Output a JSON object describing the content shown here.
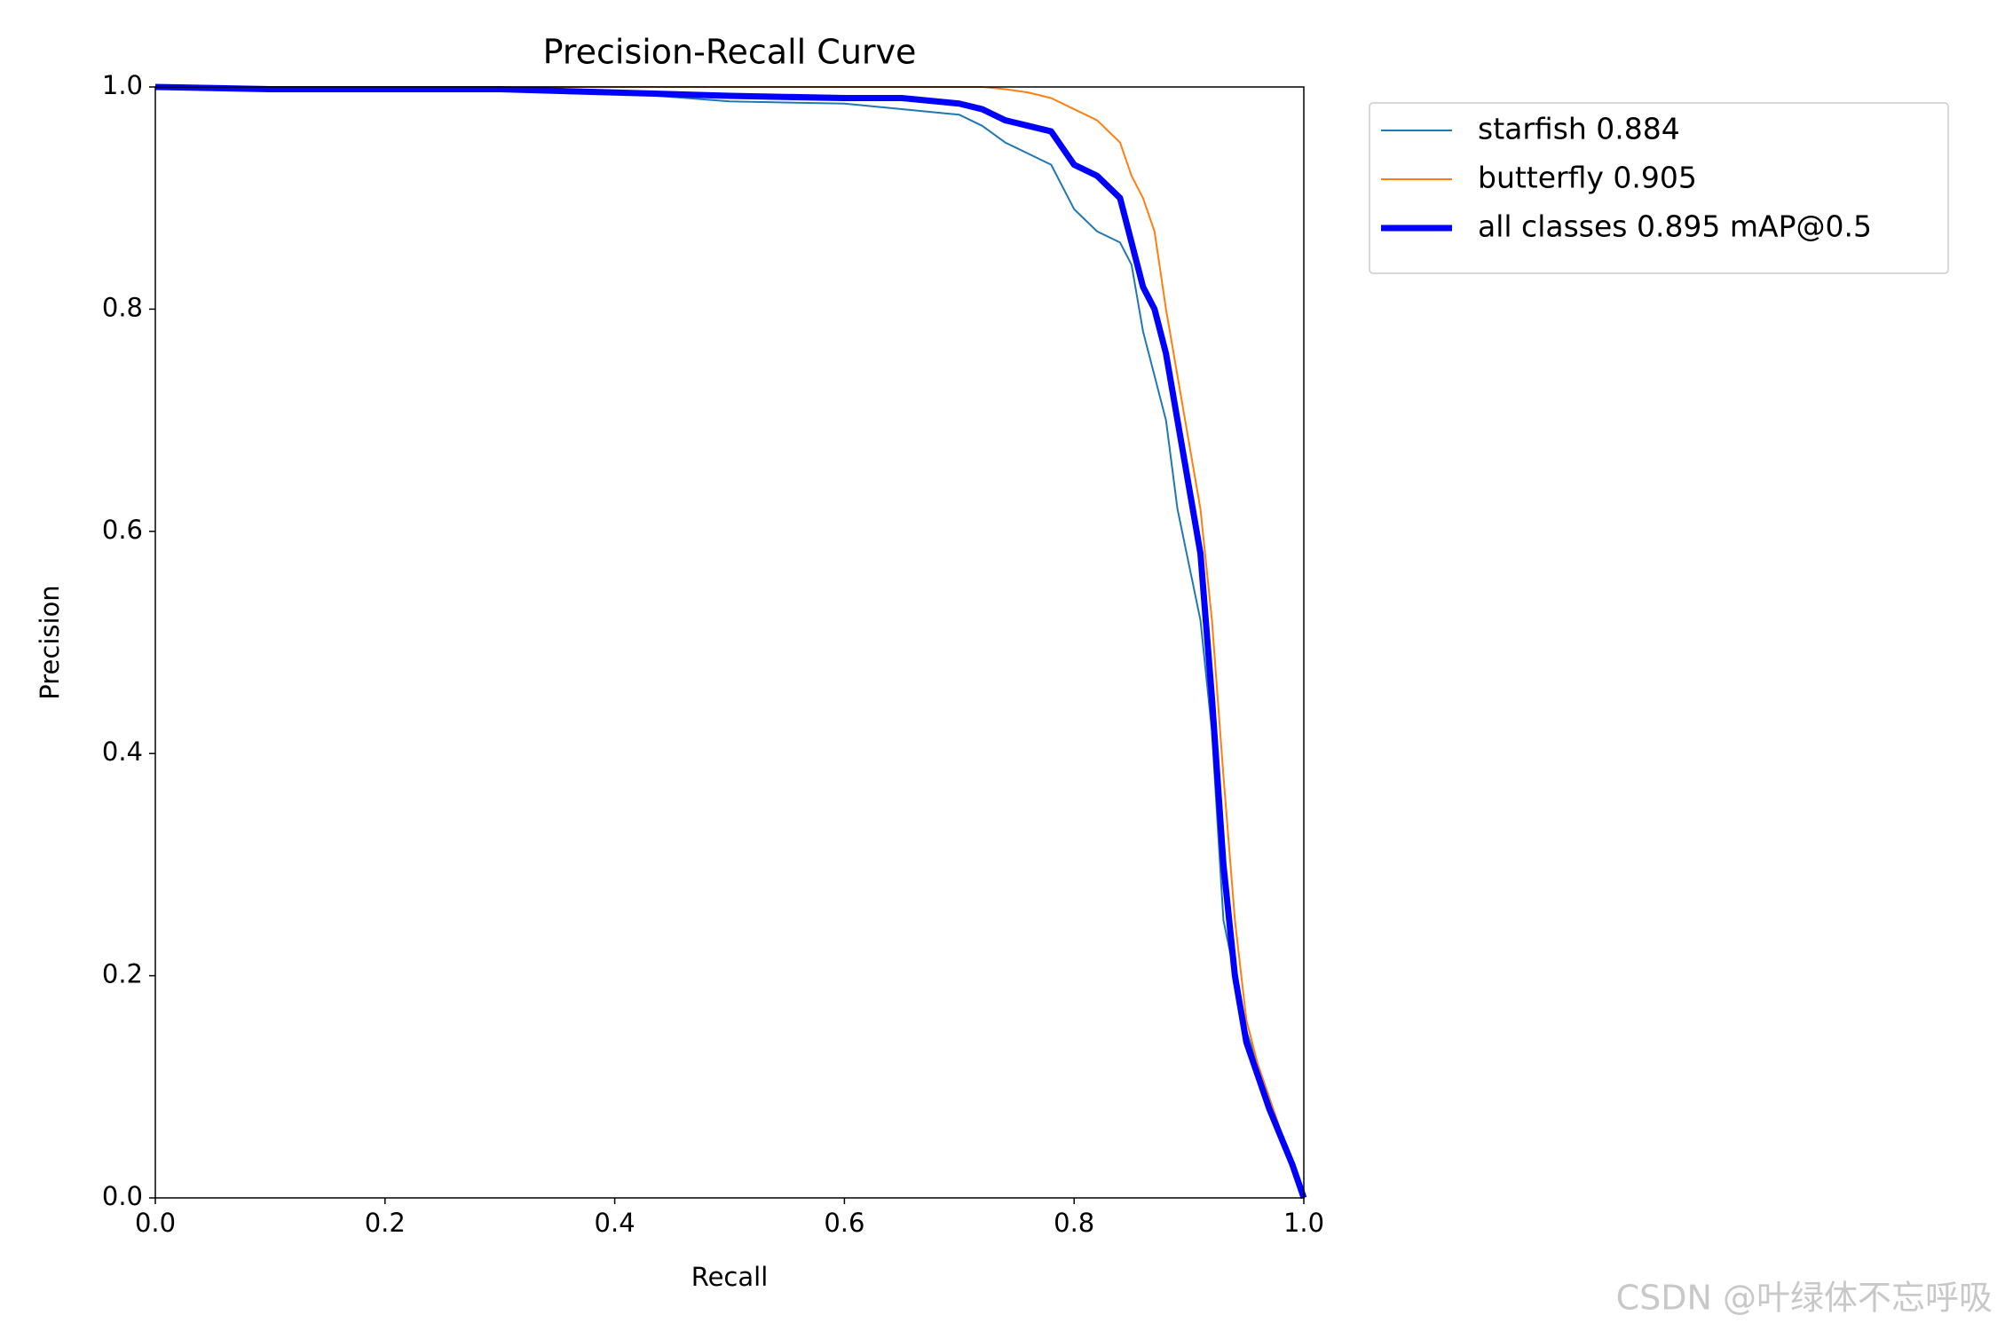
{
  "chart_data": {
    "type": "line",
    "title": "Precision-Recall Curve",
    "x_label": "Recall",
    "y_label": "Precision",
    "x": [
      0,
      0.1,
      0.2,
      0.3,
      0.4,
      0.5,
      0.6,
      0.65,
      0.7,
      0.72,
      0.74,
      0.76,
      0.78,
      0.8,
      0.82,
      0.84,
      0.85,
      0.86,
      0.87,
      0.88,
      0.89,
      0.9,
      0.91,
      0.92,
      0.93,
      0.94,
      0.95,
      0.96,
      0.97,
      0.98,
      0.99,
      1.0
    ],
    "series": [
      {
        "name": "starfish 0.884",
        "color": "#1f77b4",
        "width": 2,
        "values": [
          1,
          1,
          1,
          1,
          0.995,
          0.987,
          0.985,
          0.98,
          0.975,
          0.965,
          0.95,
          0.94,
          0.93,
          0.89,
          0.87,
          0.86,
          0.84,
          0.78,
          0.74,
          0.7,
          0.62,
          0.57,
          0.52,
          0.42,
          0.25,
          0.2,
          0.15,
          0.12,
          0.09,
          0.06,
          0.03,
          0
        ]
      },
      {
        "name": "butterfly 0.905",
        "color": "#ff7f0e",
        "width": 2,
        "values": [
          1,
          1,
          1,
          1,
          1,
          1,
          1,
          1,
          1,
          1,
          0.998,
          0.995,
          0.99,
          0.98,
          0.97,
          0.95,
          0.92,
          0.9,
          0.87,
          0.8,
          0.74,
          0.68,
          0.62,
          0.52,
          0.38,
          0.25,
          0.16,
          0.12,
          0.09,
          0.06,
          0.03,
          0
        ]
      },
      {
        "name": "all classes 0.895 mAP@0.5",
        "color": "#0000ff",
        "width": 7,
        "values": [
          1,
          0.998,
          0.998,
          0.998,
          0.995,
          0.992,
          0.99,
          0.99,
          0.985,
          0.98,
          0.97,
          0.965,
          0.96,
          0.93,
          0.92,
          0.9,
          0.86,
          0.82,
          0.8,
          0.76,
          0.7,
          0.64,
          0.58,
          0.45,
          0.3,
          0.2,
          0.14,
          0.11,
          0.08,
          0.055,
          0.03,
          0
        ]
      }
    ],
    "xlim": [
      0,
      1
    ],
    "ylim": [
      0,
      1
    ],
    "xticks": [
      {
        "value": 0,
        "label": "0.0"
      },
      0.2,
      0.4,
      0.6,
      0.8,
      {
        "value": 1,
        "label": "1.0"
      }
    ],
    "yticks": [
      {
        "value": 0,
        "label": "0.0"
      },
      0.2,
      0.4,
      0.6,
      0.8,
      {
        "value": 1,
        "label": "1.0"
      }
    ],
    "legend": "outside-upper-right",
    "watermark": "CSDN @叶绿体不忘呼吸"
  }
}
